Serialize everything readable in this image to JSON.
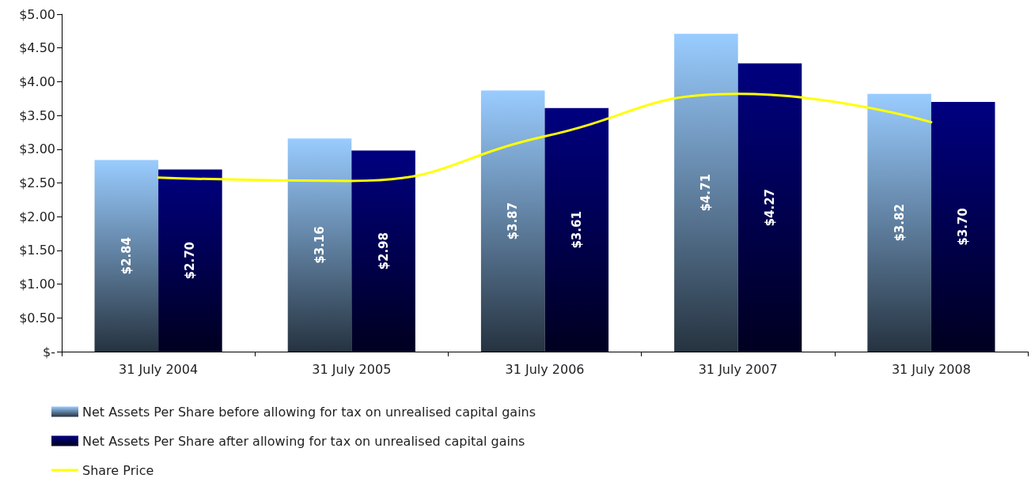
{
  "chart_data": {
    "type": "bar",
    "categories": [
      "31 July 2004",
      "31 July 2005",
      "31 July 2006",
      "31 July 2007",
      "31 July 2008"
    ],
    "series": [
      {
        "name": "Net Assets Per Share before allowing for tax on unrealised capital gains",
        "color": "#99ccff",
        "values": [
          2.84,
          3.16,
          3.87,
          4.71,
          3.82
        ],
        "value_labels": [
          "$2.84",
          "$3.16",
          "$3.87",
          "$4.71",
          "$3.82"
        ]
      },
      {
        "name": "Net Assets Per Share after allowing for tax on unrealised capital gains",
        "color": "#000080",
        "values": [
          2.7,
          2.98,
          3.61,
          4.27,
          3.7
        ],
        "value_labels": [
          "$2.70",
          "$2.98",
          "$3.61",
          "$4.27",
          "$3.70"
        ]
      },
      {
        "name": "Share Price",
        "type": "line",
        "color": "#ffff00",
        "values": [
          2.58,
          2.53,
          3.19,
          3.82,
          3.4
        ]
      }
    ],
    "ylim": [
      0,
      5
    ],
    "yticks": [
      {
        "value": 0,
        "label": "$-"
      },
      {
        "value": 0.5,
        "label": "$0.50"
      },
      {
        "value": 1,
        "label": "$1.00"
      },
      {
        "value": 1.5,
        "label": "$1.50"
      },
      {
        "value": 2,
        "label": "$2.00"
      },
      {
        "value": 2.5,
        "label": "$2.50"
      },
      {
        "value": 3,
        "label": "$3.00"
      },
      {
        "value": 3.5,
        "label": "$3.50"
      },
      {
        "value": 4,
        "label": "$4.00"
      },
      {
        "value": 4.5,
        "label": "$4.50"
      },
      {
        "value": 5,
        "label": "$5.00"
      }
    ],
    "legend": "bottom",
    "marker": "none",
    "line_style": "solid"
  }
}
